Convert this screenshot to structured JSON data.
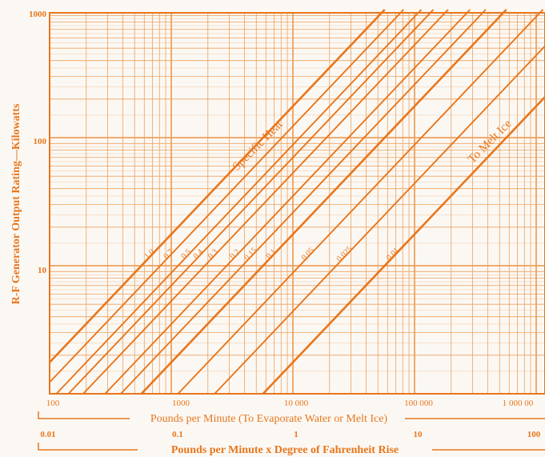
{
  "chart_data": {
    "type": "line",
    "scale": "log-log",
    "xlabel_top": "Pounds per Minute (To Evaporate Water or Melt Ice)",
    "xlabel_bottom": "Pounds per Minute x Degree of Fahrenheit Rise",
    "ylabel": "R-F Generator Output Rating—Kilowatts",
    "x_bottom_ticks": [
      "100",
      "1000",
      "10 000",
      "100 000",
      "1 000 00"
    ],
    "x_top_ticks": [
      "0.01",
      "0.1",
      "1",
      "10",
      "100"
    ],
    "y_ticks": [
      "10",
      "100",
      "1000"
    ],
    "x_bottom_range": [
      100,
      1000000
    ],
    "y_range": [
      1,
      1000
    ],
    "grid": true,
    "group_labels": {
      "specific_heat": "Specific Heat",
      "melt_ice": "To Melt Ice"
    },
    "series": [
      {
        "name": "1.0",
        "kw_at_1000_lb_deg_per_min": 17.6
      },
      {
        "name": "0.7",
        "kw_at_1000_lb_deg_per_min": 12.3
      },
      {
        "name": "0.5",
        "kw_at_1000_lb_deg_per_min": 8.8
      },
      {
        "name": "0.4",
        "kw_at_1000_lb_deg_per_min": 7.0
      },
      {
        "name": "0.3",
        "kw_at_1000_lb_deg_per_min": 5.3
      },
      {
        "name": "0.2",
        "kw_at_1000_lb_deg_per_min": 3.5
      },
      {
        "name": "0.15",
        "kw_at_1000_lb_deg_per_min": 2.6
      },
      {
        "name": "0.1",
        "kw_at_1000_lb_deg_per_min": 1.76
      },
      {
        "name": "0.05",
        "kw_at_1000_lb_deg_per_min": 0.88
      },
      {
        "name": "0.025",
        "kw_at_1000_lb_deg_per_min": 0.44
      },
      {
        "name": "0.01",
        "kw_at_1000_lb_deg_per_min": 0.176
      }
    ]
  },
  "style": {
    "ink": "#e8761c",
    "grid": "#eea15c",
    "paper": "#fbf8f4"
  }
}
